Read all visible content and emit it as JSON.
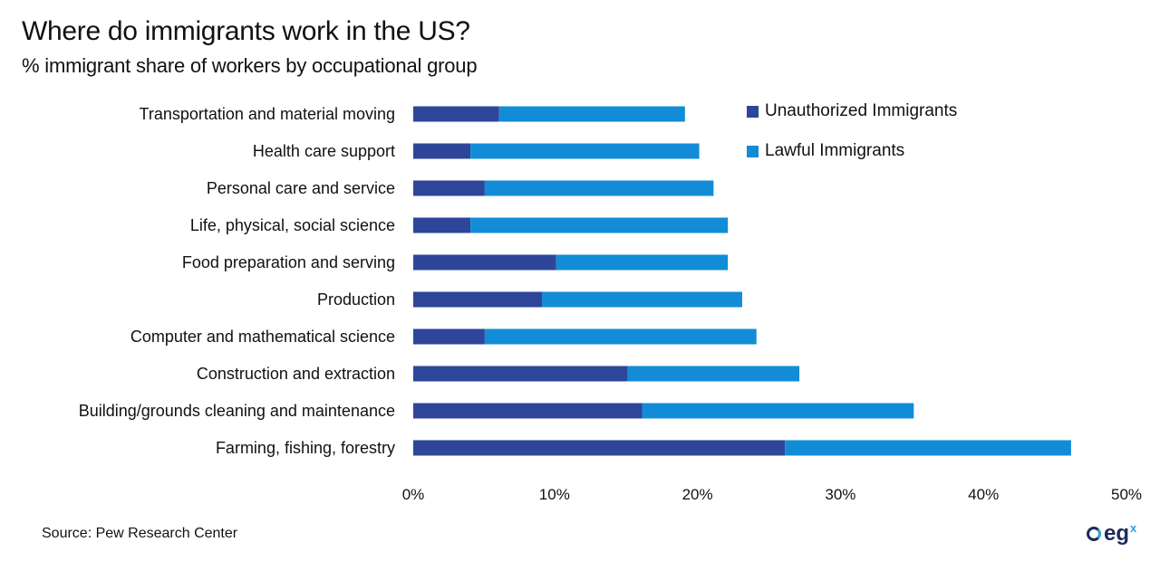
{
  "header": {
    "title": "Where do immigrants work in the US?",
    "subtitle": "% immigrant share of workers by occupational group"
  },
  "footer": {
    "source": "Source: Pew Research Center",
    "logo_text": "eg",
    "logo_superscript": "x"
  },
  "colors": {
    "unauthorized": "#2e4699",
    "lawful": "#128cd6"
  },
  "chart_data": {
    "type": "bar",
    "orientation": "horizontal",
    "stacked": true,
    "title": "Where do immigrants work in the US?",
    "subtitle": "% immigrant share of workers by occupational group",
    "xlabel": "",
    "ylabel": "",
    "xlim": [
      0,
      50
    ],
    "x_ticks": [
      "0%",
      "10%",
      "20%",
      "30%",
      "40%",
      "50%"
    ],
    "x_tick_values": [
      0,
      10,
      20,
      30,
      40,
      50
    ],
    "grid": false,
    "legend_position": "top-right",
    "categories": [
      "Transportation and material moving",
      "Health care support",
      "Personal care and service",
      "Life, physical, social science",
      "Food preparation and serving",
      "Production",
      "Computer and mathematical science",
      "Construction and extraction",
      "Building/grounds cleaning and maintenance",
      "Farming, fishing, forestry"
    ],
    "series": [
      {
        "name": "Unauthorized Immigrants",
        "color": "#2e4699",
        "values": [
          6,
          4,
          5,
          4,
          10,
          9,
          5,
          15,
          16,
          26
        ]
      },
      {
        "name": "Lawful Immigrants",
        "color": "#128cd6",
        "values": [
          13,
          16,
          16,
          18,
          12,
          14,
          19,
          12,
          19,
          20
        ]
      }
    ],
    "source": "Source: Pew Research Center"
  }
}
